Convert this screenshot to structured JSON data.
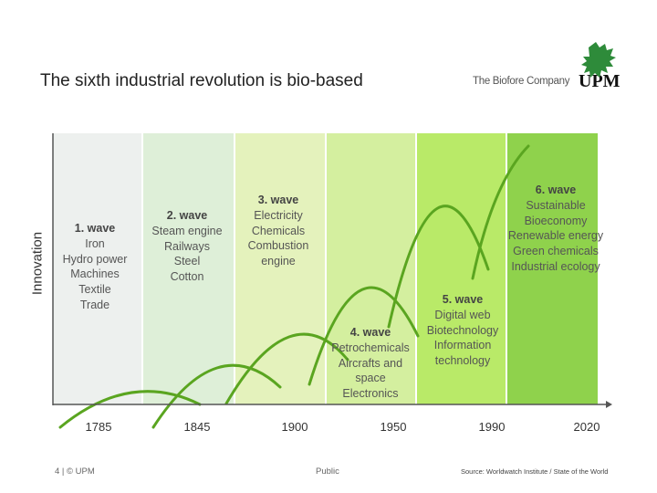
{
  "header": {
    "title": "The sixth industrial revolution is bio-based",
    "logo_tagline": "The Biofore Company",
    "logo_text": "UPM",
    "brand_color": "#2e8b3a"
  },
  "y_axis_label": "Innovation",
  "bands": [
    "#edf0ee",
    "#deefd8",
    "#e4f2bc",
    "#d4ef9f",
    "#b9ea68",
    "#8fd24c"
  ],
  "curve_color": "#5aa520",
  "waves": [
    {
      "title": "1. wave",
      "items": [
        "Iron",
        "Hydro power",
        "Machines",
        "Textile",
        "Trade"
      ]
    },
    {
      "title": "2. wave",
      "items": [
        "Steam engine",
        "Railways",
        "Steel",
        "Cotton"
      ]
    },
    {
      "title": "3. wave",
      "items": [
        "Electricity",
        "Chemicals",
        "Combustion",
        "engine"
      ]
    },
    {
      "title": "4. wave",
      "items": [
        "Petrochemicals",
        "Aircrafts and",
        "space",
        "Electronics"
      ]
    },
    {
      "title": "5. wave",
      "items": [
        "Digital web",
        "Biotechnology",
        "Information",
        "technology"
      ]
    },
    {
      "title": "6. wave",
      "items": [
        "Sustainable",
        "Bioeconomy",
        "Renewable energy",
        "Green chemicals",
        "Industrial ecology"
      ]
    }
  ],
  "years": [
    "1785",
    "1845",
    "1900",
    "1950",
    "1990",
    "2020"
  ],
  "footer": {
    "left": "4 | © UPM",
    "middle": "Public",
    "right": "Source: Worldwatch Institute / State of the World"
  }
}
